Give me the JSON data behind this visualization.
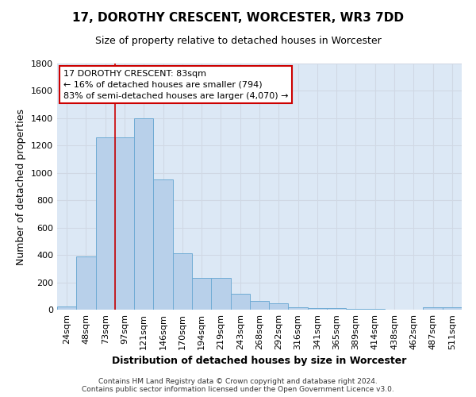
{
  "title": "17, DOROTHY CRESCENT, WORCESTER, WR3 7DD",
  "subtitle": "Size of property relative to detached houses in Worcester",
  "xlabel": "Distribution of detached houses by size in Worcester",
  "ylabel": "Number of detached properties",
  "footer_line1": "Contains HM Land Registry data © Crown copyright and database right 2024.",
  "footer_line2": "Contains public sector information licensed under the Open Government Licence v3.0.",
  "categories": [
    "24sqm",
    "48sqm",
    "73sqm",
    "97sqm",
    "121sqm",
    "146sqm",
    "170sqm",
    "194sqm",
    "219sqm",
    "243sqm",
    "268sqm",
    "292sqm",
    "316sqm",
    "341sqm",
    "365sqm",
    "389sqm",
    "414sqm",
    "438sqm",
    "462sqm",
    "487sqm",
    "511sqm"
  ],
  "values": [
    25,
    390,
    1260,
    1260,
    1400,
    950,
    410,
    235,
    235,
    115,
    65,
    45,
    20,
    10,
    10,
    5,
    5,
    0,
    0,
    15,
    15
  ],
  "bar_color": "#b8d0ea",
  "bar_edge_color": "#6fabd4",
  "grid_color": "#d0d8e4",
  "annotation_line1": "17 DOROTHY CRESCENT: 83sqm",
  "annotation_line2": "← 16% of detached houses are smaller (794)",
  "annotation_line3": "83% of semi-detached houses are larger (4,070) →",
  "annotation_box_color": "#ffffff",
  "annotation_box_edge_color": "#cc0000",
  "vline_x_index": 2.5,
  "vline_color": "#cc0000",
  "ylim": [
    0,
    1800
  ],
  "yticks": [
    0,
    200,
    400,
    600,
    800,
    1000,
    1200,
    1400,
    1600,
    1800
  ],
  "bg_color": "#dce8f5",
  "plot_bg_color": "#ffffff",
  "title_fontsize": 11,
  "subtitle_fontsize": 9,
  "ylabel_fontsize": 9,
  "xlabel_fontsize": 9
}
